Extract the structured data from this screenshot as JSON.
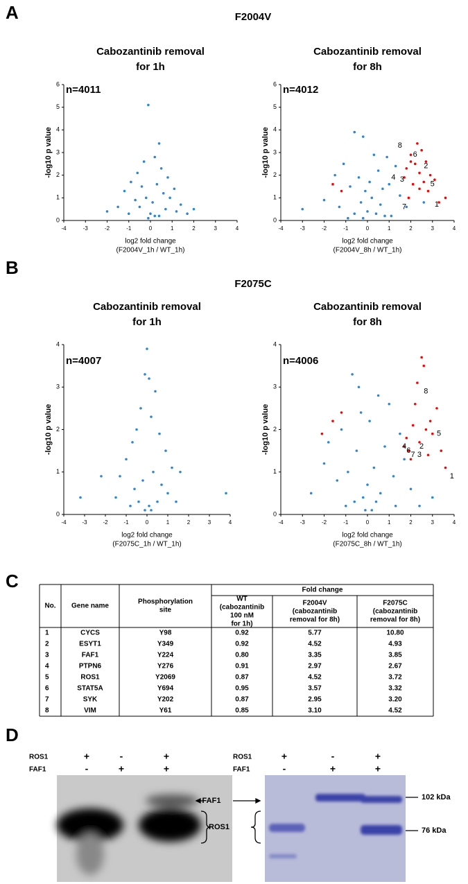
{
  "panel_a": {
    "label": "A",
    "title": "F2004V",
    "chart_data": [
      {
        "type": "scatter",
        "title": [
          "Cabozantinib removal",
          "for 1h"
        ],
        "n_label": "n=4011",
        "x_label": [
          "log2 fold change",
          "(F2004V_1h / WT_1h)"
        ],
        "y_label": "-log10 p value",
        "xlim": [
          -4,
          4
        ],
        "ylim": [
          0,
          6
        ],
        "xticks": [
          -4,
          -3,
          -2,
          -1,
          0,
          1,
          2,
          3,
          4
        ],
        "yticks": [
          0,
          1,
          2,
          3,
          4,
          5,
          6
        ],
        "series": [
          {
            "color": "#2e86d4",
            "x": [
              -0.1,
              0.4,
              0.2,
              -0.3,
              0.5,
              -0.6,
              0.8,
              -0.9,
              1.1,
              -1.2,
              0.3,
              -0.4,
              0.6,
              -0.2,
              0.1,
              0.9,
              -0.7,
              1.4,
              -1.5,
              2.0,
              -2.0,
              0.0,
              0.7,
              -0.5,
              1.2,
              -1.0,
              0.2,
              -0.1,
              0.4,
              1.7
            ],
            "values": [
              5.1,
              3.4,
              2.8,
              2.6,
              2.3,
              2.1,
              1.9,
              1.7,
              1.4,
              1.3,
              1.6,
              1.5,
              1.2,
              1.0,
              0.8,
              1.0,
              0.9,
              0.7,
              0.6,
              0.5,
              0.4,
              0.3,
              0.5,
              0.6,
              0.4,
              0.3,
              0.2,
              0.1,
              0.2,
              0.3
            ]
          }
        ],
        "annotations": []
      },
      {
        "type": "scatter",
        "title": [
          "Cabozantinib removal",
          "for 8h"
        ],
        "n_label": "n=4012",
        "x_label": [
          "log2 fold change",
          "(F2004V_8h / WT_1h)"
        ],
        "y_label": "-log10 p value",
        "xlim": [
          -4,
          4
        ],
        "ylim": [
          0,
          6
        ],
        "xticks": [
          -4,
          -3,
          -2,
          -1,
          0,
          1,
          2,
          3,
          4
        ],
        "yticks": [
          0,
          1,
          2,
          3,
          4,
          5,
          6
        ],
        "series": [
          {
            "color": "#2e86d4",
            "x": [
              -0.6,
              -0.2,
              0.3,
              0.9,
              -1.1,
              1.3,
              -1.5,
              0.5,
              -0.4,
              0.1,
              1.0,
              -0.8,
              0.7,
              -0.1,
              1.5,
              -2.0,
              -3.0,
              0.2,
              -0.3,
              0.6,
              1.8,
              -1.3,
              0.0,
              0.4,
              -0.6,
              1.1,
              2.6,
              -0.9,
              0.8,
              -0.2
            ],
            "values": [
              3.9,
              3.7,
              2.9,
              2.8,
              2.5,
              2.4,
              2.0,
              2.2,
              1.9,
              1.7,
              1.6,
              1.5,
              1.4,
              1.3,
              1.1,
              0.9,
              0.5,
              1.0,
              0.8,
              0.7,
              0.6,
              0.6,
              0.4,
              0.3,
              0.3,
              0.2,
              0.8,
              0.1,
              0.2,
              0.1
            ]
          },
          {
            "color": "#ff0000",
            "x": [
              2.3,
              2.5,
              2.0,
              2.7,
              2.2,
              1.8,
              2.4,
              2.9,
              3.1,
              2.6,
              1.7,
              2.1,
              3.6,
              -1.6,
              -1.2,
              2.8,
              1.9,
              2.4,
              3.3,
              2.0
            ],
            "values": [
              3.4,
              3.1,
              2.9,
              2.6,
              2.5,
              2.3,
              2.1,
              2.0,
              1.8,
              1.7,
              1.9,
              1.6,
              1.0,
              1.6,
              1.3,
              1.3,
              1.0,
              1.4,
              0.8,
              2.6
            ]
          }
        ],
        "annotations": [
          {
            "text": "8",
            "x": 1.4,
            "y": 3.3
          },
          {
            "text": "6",
            "x": 2.1,
            "y": 2.9
          },
          {
            "text": "2",
            "x": 2.6,
            "y": 2.4
          },
          {
            "text": "4",
            "x": 1.1,
            "y": 1.9
          },
          {
            "text": "3",
            "x": 1.5,
            "y": 1.8
          },
          {
            "text": "5",
            "x": 2.9,
            "y": 1.6
          },
          {
            "text": "7",
            "x": 1.6,
            "y": 0.6
          },
          {
            "text": "1",
            "x": 3.1,
            "y": 0.7
          }
        ]
      }
    ]
  },
  "panel_b": {
    "label": "B",
    "title": "F2075C",
    "chart_data": [
      {
        "type": "scatter",
        "title": [
          "Cabozantinib removal",
          "for 1h"
        ],
        "n_label": "n=4007",
        "x_label": [
          "log2 fold change",
          "(F2075C_1h / WT_1h)"
        ],
        "y_label": "-log10 p value",
        "xlim": [
          -4,
          4
        ],
        "ylim": [
          0,
          4
        ],
        "xticks": [
          -4,
          -3,
          -2,
          -1,
          0,
          1,
          2,
          3,
          4
        ],
        "yticks": [
          0,
          1,
          2,
          3,
          4
        ],
        "series": [
          {
            "color": "#2e86d4",
            "x": [
              0.0,
              -0.1,
              0.1,
              0.4,
              -0.3,
              0.2,
              -0.5,
              0.6,
              -0.7,
              0.9,
              1.6,
              -1.0,
              1.2,
              -1.3,
              0.3,
              -0.2,
              0.7,
              -0.6,
              1.0,
              -1.5,
              -2.2,
              -3.2,
              3.8,
              0.5,
              -0.4,
              0.1,
              1.4,
              -0.8,
              0.2,
              -0.1
            ],
            "values": [
              3.9,
              3.3,
              3.2,
              2.9,
              2.5,
              2.3,
              2.0,
              1.9,
              1.7,
              1.5,
              1.0,
              1.3,
              1.1,
              0.9,
              1.0,
              0.8,
              0.7,
              0.6,
              0.5,
              0.4,
              0.9,
              0.4,
              0.5,
              0.3,
              0.3,
              0.2,
              0.3,
              0.2,
              0.1,
              0.1
            ]
          }
        ],
        "annotations": []
      },
      {
        "type": "scatter",
        "title": [
          "Cabozantinib removal",
          "for 8h"
        ],
        "n_label": "n=4006",
        "x_label": [
          "log2 fold change",
          "(F2075C_8h / WT_1h)"
        ],
        "y_label": "-log10 p value",
        "xlim": [
          -4,
          4
        ],
        "ylim": [
          0,
          4
        ],
        "xticks": [
          -4,
          -3,
          -2,
          -1,
          0,
          1,
          2,
          3,
          4
        ],
        "yticks": [
          0,
          1,
          2,
          3,
          4
        ],
        "series": [
          {
            "color": "#2e86d4",
            "x": [
              -0.7,
              -0.4,
              0.5,
              1.0,
              -0.3,
              0.1,
              -1.2,
              1.5,
              -1.8,
              0.8,
              -0.5,
              1.7,
              -2.0,
              0.3,
              -0.9,
              1.2,
              -1.4,
              0.0,
              2.0,
              -2.6,
              0.6,
              -0.2,
              3.0,
              0.4,
              -0.6,
              1.3,
              -1.0,
              0.2,
              2.4,
              -0.1
            ],
            "values": [
              3.3,
              3.0,
              2.8,
              2.6,
              2.4,
              2.2,
              2.0,
              1.9,
              1.7,
              1.6,
              1.5,
              1.3,
              1.2,
              1.1,
              1.0,
              0.9,
              0.8,
              0.7,
              0.6,
              0.5,
              0.5,
              0.4,
              0.4,
              0.3,
              0.3,
              0.2,
              0.2,
              0.1,
              0.2,
              0.1
            ]
          },
          {
            "color": "#ff0000",
            "x": [
              2.5,
              2.6,
              2.3,
              2.2,
              3.2,
              2.9,
              2.1,
              2.7,
              3.0,
              1.8,
              -2.1,
              -1.6,
              -1.2,
              2.4,
              1.9,
              3.4,
              2.8,
              3.6,
              2.0,
              1.7
            ],
            "values": [
              3.7,
              3.5,
              3.1,
              2.6,
              2.5,
              2.2,
              2.1,
              2.0,
              1.9,
              1.8,
              1.9,
              2.2,
              2.4,
              1.7,
              1.5,
              1.5,
              1.4,
              1.1,
              1.3,
              1.6
            ]
          }
        ],
        "annotations": [
          {
            "text": "8",
            "x": 2.6,
            "y": 2.9
          },
          {
            "text": "5",
            "x": 3.2,
            "y": 1.9
          },
          {
            "text": "2",
            "x": 2.4,
            "y": 1.6
          },
          {
            "text": "4",
            "x": 1.6,
            "y": 1.6
          },
          {
            "text": "6",
            "x": 1.8,
            "y": 1.5
          },
          {
            "text": "7",
            "x": 2.0,
            "y": 1.4
          },
          {
            "text": "3",
            "x": 2.3,
            "y": 1.4
          },
          {
            "text": "1",
            "x": 3.8,
            "y": 0.9
          }
        ]
      }
    ]
  },
  "panel_c": {
    "label": "C",
    "table": {
      "group_header": "Fold change",
      "columns": [
        [
          "No."
        ],
        [
          "Gene name"
        ],
        [
          "Phosphorylation",
          "site"
        ],
        [
          "WT",
          "(cabozantinib",
          "100 nM",
          "for 1h)"
        ],
        [
          "F2004V",
          "(cabozantinib",
          "removal for 8h)"
        ],
        [
          "F2075C",
          "(cabozantinib",
          "removal for 8h)"
        ]
      ],
      "rows": [
        [
          "1",
          "CYCS",
          "Y98",
          "0.92",
          "5.77",
          "10.80"
        ],
        [
          "2",
          "ESYT1",
          "Y349",
          "0.92",
          "4.52",
          "4.93"
        ],
        [
          "3",
          "FAF1",
          "Y224",
          "0.80",
          "3.35",
          "3.85"
        ],
        [
          "4",
          "PTPN6",
          "Y276",
          "0.91",
          "2.97",
          "2.67"
        ],
        [
          "5",
          "ROS1",
          "Y2069",
          "0.87",
          "4.52",
          "3.72"
        ],
        [
          "6",
          "STAT5A",
          "Y694",
          "0.95",
          "3.57",
          "3.32"
        ],
        [
          "7",
          "SYK",
          "Y202",
          "0.87",
          "2.95",
          "3.20"
        ],
        [
          "8",
          "VIM",
          "Y61",
          "0.85",
          "3.10",
          "4.52"
        ]
      ]
    }
  },
  "panel_d": {
    "label": "D",
    "left_gel": [
      {
        "name": "ROS1",
        "signs": [
          "+",
          "-",
          "+"
        ]
      },
      {
        "name": "FAF1",
        "signs": [
          "-",
          "+",
          "+"
        ]
      }
    ],
    "right_gel": [
      {
        "name": "ROS1",
        "signs": [
          "+",
          "-",
          "+"
        ]
      },
      {
        "name": "FAF1",
        "signs": [
          "-",
          "+",
          "+"
        ]
      }
    ],
    "arrow_label": "FAF1",
    "bracket_label": "ROS1",
    "markers": [
      "102 kDa",
      "76 kDa"
    ]
  }
}
